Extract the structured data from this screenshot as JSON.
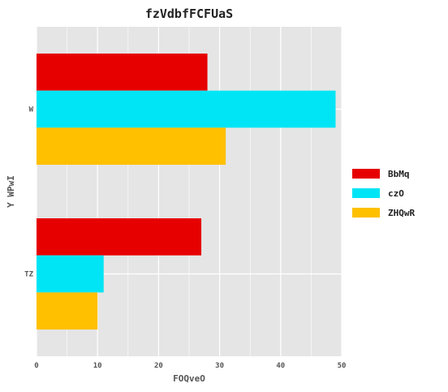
{
  "chart_data": {
    "type": "bar",
    "orientation": "horizontal",
    "title": "fzVdbfFCFUaS",
    "xlabel": "FOQveO",
    "ylabel": "Y WPwI",
    "categories": [
      "W",
      "TZ"
    ],
    "series": [
      {
        "name": "BbMq",
        "values": [
          28,
          27
        ],
        "color": "#e60000"
      },
      {
        "name": "czO",
        "values": [
          49,
          11
        ],
        "color": "#00e5f5"
      },
      {
        "name": "ZHQwR",
        "values": [
          31,
          10
        ],
        "color": "#ffc000"
      }
    ],
    "xlim": [
      0,
      50
    ],
    "xticks": [
      0,
      10,
      20,
      30,
      40,
      50
    ],
    "grid": true,
    "legend_position": "right"
  }
}
